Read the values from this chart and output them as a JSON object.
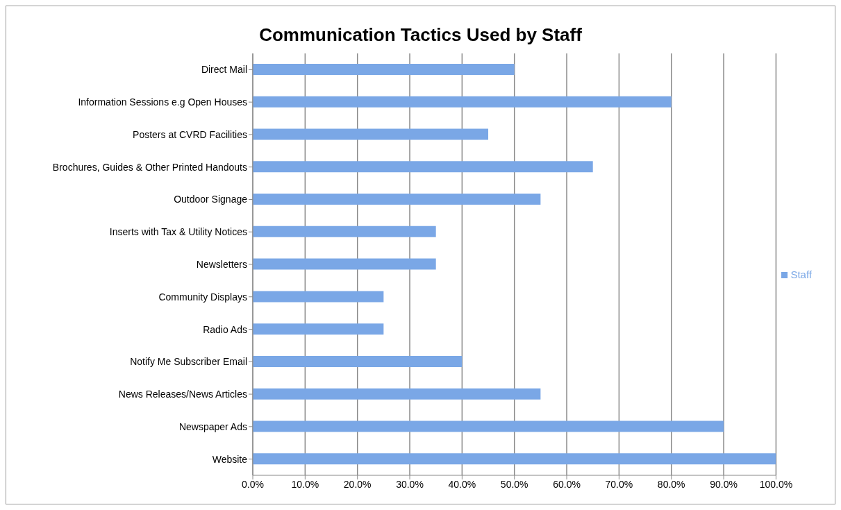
{
  "chart_data": {
    "type": "bar",
    "orientation": "horizontal",
    "title": "Communication Tactics Used by Staff",
    "categories": [
      "Direct Mail",
      "Information Sessions e.g Open Houses",
      "Posters at CVRD Facilities",
      "Brochures, Guides & Other Printed Handouts",
      "Outdoor Signage",
      "Inserts with Tax & Utility Notices",
      "Newsletters",
      "Community Displays",
      "Radio Ads",
      "Notify Me Subscriber Email",
      "News Releases/News Articles",
      "Newspaper Ads",
      "Website"
    ],
    "series": [
      {
        "name": "Staff",
        "color": "#7aa7e6",
        "values": [
          50,
          80,
          45,
          65,
          55,
          35,
          35,
          25,
          25,
          40,
          55,
          90,
          100
        ]
      }
    ],
    "xlim": [
      0,
      100
    ],
    "xticks": [
      {
        "value": 0,
        "label": "0.0%"
      },
      {
        "value": 10,
        "label": "10.0%"
      },
      {
        "value": 20,
        "label": "20.0%"
      },
      {
        "value": 30,
        "label": "30.0%"
      },
      {
        "value": 40,
        "label": "40.0%"
      },
      {
        "value": 50,
        "label": "50.0%"
      },
      {
        "value": 60,
        "label": "60.0%"
      },
      {
        "value": 70,
        "label": "70.0%"
      },
      {
        "value": 80,
        "label": "80.0%"
      },
      {
        "value": 90,
        "label": "90.0%"
      },
      {
        "value": 100,
        "label": "100.0%"
      }
    ],
    "grid": "x",
    "legend": "right"
  }
}
